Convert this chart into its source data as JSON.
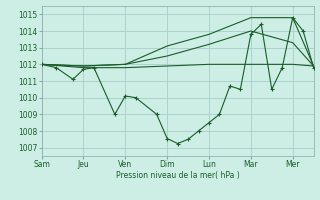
{
  "background_color": "#cceee4",
  "grid_color": "#aacccc",
  "line_color": "#1a5c2a",
  "x_labels": [
    "Sam",
    "Jeu",
    "Ven",
    "Dim",
    "Lun",
    "Mar",
    "Mer"
  ],
  "x_tick_pos": [
    0,
    2,
    4,
    6,
    8,
    10,
    12
  ],
  "ylabel": "Pression niveau de la mer( hPa )",
  "ylim": [
    1006.5,
    1015.5
  ],
  "yticks": [
    1007,
    1008,
    1009,
    1010,
    1011,
    1012,
    1013,
    1014,
    1015
  ],
  "xlim": [
    0,
    13
  ],
  "series1_x": [
    0,
    0.7,
    1.5,
    2,
    2.5,
    3.5,
    4,
    4.5,
    5.5,
    6,
    6.5,
    7,
    7.5,
    8,
    8.5,
    9,
    9.5,
    10,
    10.5,
    11,
    11.5,
    12,
    12.5,
    13
  ],
  "series1_y": [
    1012.0,
    1011.8,
    1011.1,
    1011.7,
    1011.8,
    1009.0,
    1010.1,
    1010.0,
    1009.0,
    1007.55,
    1007.25,
    1007.5,
    1008.0,
    1008.5,
    1009.0,
    1010.7,
    1010.5,
    1013.8,
    1014.4,
    1010.5,
    1011.8,
    1014.8,
    1014.0,
    1011.8
  ],
  "series2_x": [
    0,
    2,
    4,
    6,
    8,
    10,
    12,
    13
  ],
  "series2_y": [
    1012.0,
    1011.8,
    1011.8,
    1011.9,
    1012.0,
    1012.0,
    1012.0,
    1011.9
  ],
  "series3_x": [
    0,
    2,
    4,
    6,
    8,
    10,
    12,
    13
  ],
  "series3_y": [
    1012.0,
    1011.9,
    1012.0,
    1012.5,
    1013.2,
    1014.0,
    1013.3,
    1011.9
  ],
  "series4_x": [
    0,
    2,
    4,
    6,
    8,
    10,
    12,
    13
  ],
  "series4_y": [
    1012.0,
    1011.9,
    1012.0,
    1013.1,
    1013.8,
    1014.8,
    1014.8,
    1011.9
  ]
}
